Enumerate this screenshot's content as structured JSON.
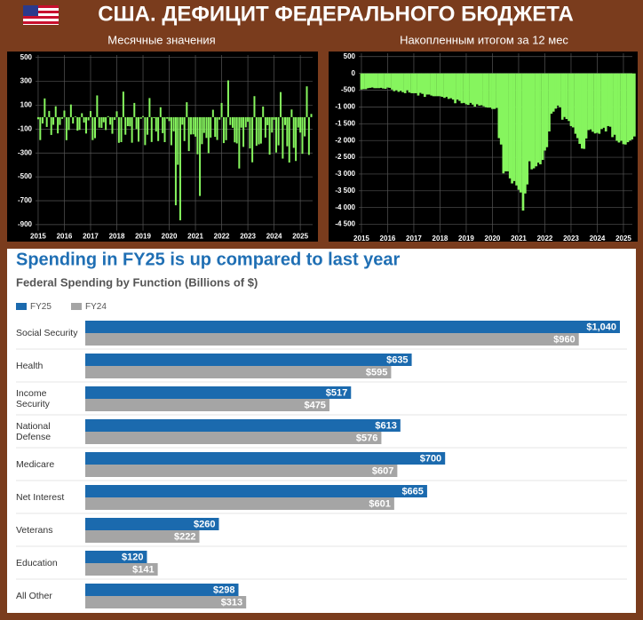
{
  "page_title": "США. ДЕФИЦИТ ФЕДЕРАЛЬНОГО БЮДЖЕТА",
  "chart_data": [
    {
      "type": "bar",
      "title": "Месячные значения",
      "color": "#86f55e",
      "grid": true,
      "xlim": [
        2014.9,
        2025.47
      ],
      "xticks": [
        2015,
        2016,
        2017,
        2018,
        2019,
        2020,
        2021,
        2022,
        2023,
        2024,
        2025
      ],
      "ylim": [
        -950,
        520
      ],
      "yticks": [
        500,
        300,
        100,
        -100,
        -300,
        -500,
        -700,
        -900
      ],
      "x": [
        2015,
        2015.08,
        2015.17,
        2015.25,
        2015.33,
        2015.42,
        2015.5,
        2015.58,
        2015.67,
        2015.75,
        2015.83,
        2015.92,
        2016,
        2016.08,
        2016.17,
        2016.25,
        2016.33,
        2016.42,
        2016.5,
        2016.58,
        2016.67,
        2016.75,
        2016.83,
        2016.92,
        2017,
        2017.08,
        2017.17,
        2017.25,
        2017.33,
        2017.42,
        2017.5,
        2017.58,
        2017.67,
        2017.75,
        2017.83,
        2017.92,
        2018,
        2018.08,
        2018.17,
        2018.25,
        2018.33,
        2018.42,
        2018.5,
        2018.58,
        2018.67,
        2018.75,
        2018.83,
        2018.92,
        2019,
        2019.08,
        2019.17,
        2019.25,
        2019.33,
        2019.42,
        2019.5,
        2019.58,
        2019.67,
        2019.75,
        2019.83,
        2019.92,
        2020,
        2020.08,
        2020.17,
        2020.25,
        2020.33,
        2020.42,
        2020.5,
        2020.58,
        2020.67,
        2020.75,
        2020.83,
        2020.92,
        2021,
        2021.08,
        2021.17,
        2021.25,
        2021.33,
        2021.42,
        2021.5,
        2021.58,
        2021.67,
        2021.75,
        2021.83,
        2021.92,
        2022,
        2022.08,
        2022.17,
        2022.25,
        2022.33,
        2022.42,
        2022.5,
        2022.58,
        2022.67,
        2022.75,
        2022.83,
        2022.92,
        2023,
        2023.08,
        2023.17,
        2023.25,
        2023.33,
        2023.42,
        2023.5,
        2023.58,
        2023.67,
        2023.75,
        2023.83,
        2023.92,
        2024,
        2024.08,
        2024.17,
        2024.25,
        2024.33,
        2024.42,
        2024.5,
        2024.58,
        2024.67,
        2024.75,
        2024.83,
        2024.92,
        2025,
        2025.08,
        2025.17,
        2025.25,
        2025.33,
        2025.42
      ],
      "values": [
        -18,
        -192,
        -53,
        157,
        -82,
        52,
        -149,
        -64,
        91,
        -136,
        -65,
        -14,
        55,
        -193,
        -108,
        106,
        -53,
        6,
        -113,
        -107,
        33,
        -45,
        -137,
        -27,
        51,
        -192,
        -176,
        182,
        -88,
        -90,
        -43,
        -108,
        8,
        -63,
        -139,
        -23,
        49,
        -215,
        -209,
        214,
        -147,
        -75,
        -77,
        -214,
        119,
        -100,
        -205,
        -14,
        9,
        -234,
        -147,
        160,
        -208,
        -8,
        -120,
        -200,
        83,
        -134,
        -209,
        -13,
        -33,
        -235,
        -119,
        -738,
        -399,
        -864,
        -63,
        -200,
        125,
        -284,
        -145,
        -144,
        -163,
        -311,
        -660,
        -226,
        -132,
        -174,
        -302,
        -171,
        62,
        -165,
        -191,
        -21,
        119,
        -217,
        -193,
        308,
        -66,
        -89,
        -211,
        -220,
        -430,
        -88,
        -249,
        -85,
        -39,
        -262,
        -378,
        176,
        -240,
        -228,
        -221,
        89,
        -171,
        -67,
        -314,
        -129,
        -22,
        -296,
        -236,
        210,
        -347,
        -66,
        -244,
        -380,
        64,
        -257,
        -367,
        -87,
        -129,
        -307,
        -161,
        258,
        -316,
        27
      ]
    },
    {
      "type": "bar",
      "title": "Накопленным итогом за 12 мес",
      "color": "#86f55e",
      "grid": true,
      "xlim": [
        2014.9,
        2025.34
      ],
      "xticks": [
        2015,
        2016,
        2017,
        2018,
        2019,
        2020,
        2021,
        2022,
        2023,
        2024,
        2025
      ],
      "ylim": [
        -4750,
        600
      ],
      "yticks": [
        500,
        0,
        -500,
        {
          "value": -1000,
          "label": "-1 000"
        },
        {
          "value": -1500,
          "label": "-1 500"
        },
        {
          "value": -2000,
          "label": "-2 000"
        },
        {
          "value": -2500,
          "label": "-2 500"
        },
        {
          "value": -3000,
          "label": "-3 000"
        },
        {
          "value": -3500,
          "label": "-3 500"
        },
        {
          "value": -4000,
          "label": "-4 000"
        },
        {
          "value": -4500,
          "label": "-4 500"
        }
      ],
      "x": [
        2015,
        2015.08,
        2015.17,
        2015.25,
        2015.33,
        2015.42,
        2015.5,
        2015.58,
        2015.67,
        2015.75,
        2015.83,
        2015.92,
        2016,
        2016.08,
        2016.17,
        2016.25,
        2016.33,
        2016.42,
        2016.5,
        2016.58,
        2016.67,
        2016.75,
        2016.83,
        2016.92,
        2017,
        2017.08,
        2017.17,
        2017.25,
        2017.33,
        2017.42,
        2017.5,
        2017.58,
        2017.67,
        2017.75,
        2017.83,
        2017.92,
        2018,
        2018.08,
        2018.17,
        2018.25,
        2018.33,
        2018.42,
        2018.5,
        2018.58,
        2018.67,
        2018.75,
        2018.83,
        2018.92,
        2019,
        2019.08,
        2019.17,
        2019.25,
        2019.33,
        2019.42,
        2019.5,
        2019.58,
        2019.67,
        2019.75,
        2019.83,
        2019.92,
        2020,
        2020.08,
        2020.17,
        2020.25,
        2020.33,
        2020.42,
        2020.5,
        2020.58,
        2020.67,
        2020.75,
        2020.83,
        2020.92,
        2021,
        2021.08,
        2021.17,
        2021.25,
        2021.33,
        2021.42,
        2021.5,
        2021.58,
        2021.67,
        2021.75,
        2021.83,
        2021.92,
        2022,
        2022.08,
        2022.17,
        2022.25,
        2022.33,
        2022.42,
        2022.5,
        2022.58,
        2022.67,
        2022.75,
        2022.83,
        2022.92,
        2023,
        2023.08,
        2023.17,
        2023.25,
        2023.33,
        2023.42,
        2023.5,
        2023.58,
        2023.67,
        2023.75,
        2023.83,
        2023.92,
        2024,
        2024.08,
        2024.17,
        2024.25,
        2024.33,
        2024.42,
        2024.5,
        2024.58,
        2024.67,
        2024.75,
        2024.83,
        2024.92,
        2025,
        2025.08,
        2025.17,
        2025.25,
        2025.33,
        2025.42
      ],
      "values": [
        -480,
        -470,
        -470,
        -440,
        -430,
        -420,
        -440,
        -440,
        -440,
        -430,
        -450,
        -460,
        -420,
        -430,
        -480,
        -530,
        -500,
        -550,
        -520,
        -560,
        -590,
        -500,
        -570,
        -590,
        -590,
        -590,
        -660,
        -580,
        -610,
        -700,
        -630,
        -630,
        -660,
        -680,
        -680,
        -680,
        -680,
        -700,
        -730,
        -700,
        -760,
        -740,
        -780,
        -890,
        -780,
        -820,
        -890,
        -880,
        -920,
        -940,
        -880,
        -930,
        -990,
        -920,
        -960,
        -950,
        -980,
        -1010,
        -1020,
        -1020,
        -1060,
        -1060,
        -1030,
        -1930,
        -2120,
        -2980,
        -2920,
        -2920,
        -3130,
        -3280,
        -3210,
        -3340,
        -3470,
        -3550,
        -4090,
        -3580,
        -3310,
        -2620,
        -2860,
        -2830,
        -2770,
        -2660,
        -2710,
        -2580,
        -2300,
        -2200,
        -1730,
        -1200,
        -1140,
        -1050,
        -960,
        -1010,
        -1380,
        -1300,
        -1360,
        -1420,
        -1570,
        -1610,
        -1800,
        -1930,
        -2100,
        -2240,
        -2250,
        -1940,
        -1690,
        -1670,
        -1740,
        -1790,
        -1770,
        -1800,
        -1660,
        -1620,
        -1730,
        -1570,
        -1590,
        -1900,
        -1830,
        -2010,
        -2060,
        -2010,
        -2110,
        -2120,
        -2050,
        -2000,
        -1970,
        -1880
      ]
    },
    {
      "type": "hbar",
      "title": "Spending in FY25 is up compared to last year",
      "subtitle": "Federal Spending by Function (Billions of $)",
      "categories": [
        "Social Security",
        "Health",
        "Income Security",
        "National Defense",
        "Medicare",
        "Net Interest",
        "Veterans",
        "Education",
        "All Other"
      ],
      "series": [
        {
          "name": "FY25",
          "color": "#1b6aae",
          "values": [
            1040,
            635,
            517,
            613,
            700,
            665,
            260,
            120,
            298
          ],
          "value_labels": [
            "$1,040",
            "$635",
            "$517",
            "$613",
            "$700",
            "$665",
            "$260",
            "$120",
            "$298"
          ]
        },
        {
          "name": "FY24",
          "color": "#a5a5a5",
          "values": [
            960,
            595,
            475,
            576,
            607,
            601,
            222,
            141,
            313
          ],
          "value_labels": [
            "$960",
            "$595",
            "$475",
            "$576",
            "$607",
            "$601",
            "$222",
            "$141",
            "$313"
          ]
        }
      ]
    }
  ]
}
